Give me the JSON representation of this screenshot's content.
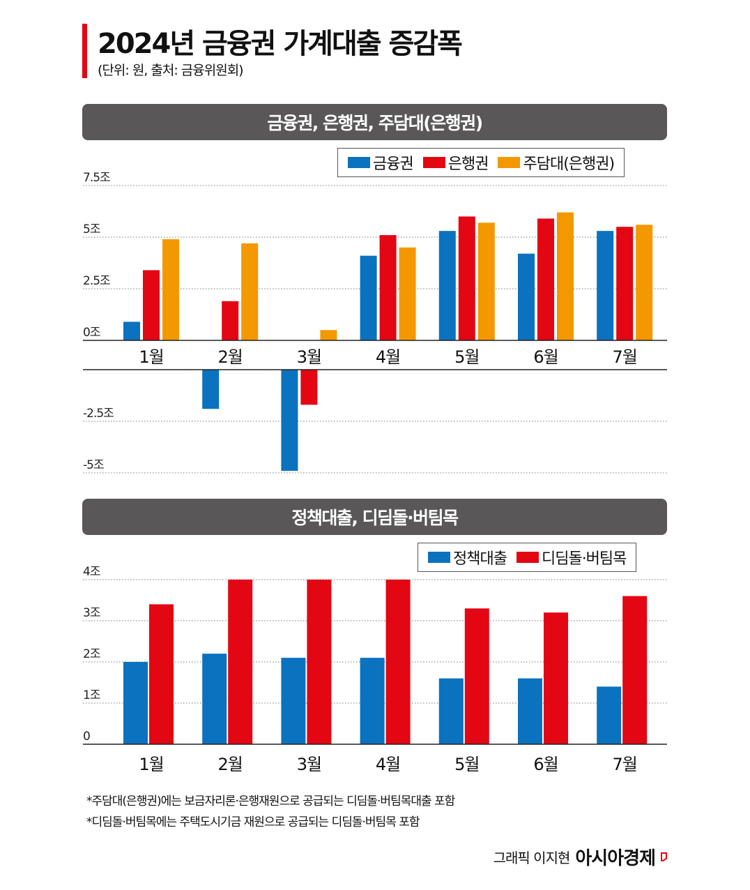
{
  "header": {
    "title": "2024년 금융권 가계대출 증감폭",
    "subtitle": "(단위: 원, 출처: 금융위원회)"
  },
  "colors": {
    "accent": "#e30613",
    "blue": "#0a72bf",
    "red": "#e30613",
    "orange": "#f39800",
    "band": "#595757"
  },
  "chart_data": [
    {
      "type": "bar",
      "title": "금융권, 은행권, 주담대(은행권)",
      "categories": [
        "1월",
        "2월",
        "3월",
        "4월",
        "5월",
        "6월",
        "7월"
      ],
      "series": [
        {
          "name": "금융권",
          "color": "#0a72bf",
          "values": [
            0.9,
            -1.9,
            -4.9,
            4.1,
            5.3,
            4.2,
            5.3
          ]
        },
        {
          "name": "은행권",
          "color": "#e30613",
          "values": [
            3.4,
            1.9,
            -1.7,
            5.1,
            6.0,
            5.9,
            5.5
          ]
        },
        {
          "name": "주담대(은행권)",
          "color": "#f39800",
          "values": [
            4.9,
            4.7,
            0.5,
            4.5,
            5.7,
            6.2,
            5.6
          ]
        }
      ],
      "yticks": [
        "7.5조",
        "5조",
        "2.5조",
        "0조",
        "-2.5조",
        "-5조"
      ],
      "ylim": [
        -5,
        7.5
      ],
      "unit": "조",
      "grid": true,
      "legend": "top-right",
      "axis_break": true
    },
    {
      "type": "bar",
      "title": "정책대출, 디딤돌·버팀목",
      "categories": [
        "1월",
        "2월",
        "3월",
        "4월",
        "5월",
        "6월",
        "7월"
      ],
      "series": [
        {
          "name": "정책대출",
          "color": "#0a72bf",
          "values": [
            2.0,
            2.2,
            2.1,
            2.1,
            1.6,
            1.6,
            1.4
          ]
        },
        {
          "name": "디딤돌·버팀목",
          "color": "#e30613",
          "values": [
            3.4,
            4.0,
            4.0,
            4.0,
            3.3,
            3.2,
            3.6
          ]
        }
      ],
      "yticks": [
        "4조",
        "3조",
        "2조",
        "1조",
        "0"
      ],
      "ylim": [
        0,
        4
      ],
      "unit": "조",
      "grid": true,
      "legend": "top-right"
    }
  ],
  "notes": [
    "*주담대(은행권)에는 보금자리론·은행재원으로 공급되는 디딤돌·버팀목대출 포함",
    "*디딤돌·버팀목에는 주택도시기금 재원으로 공급되는 디딤돌·버팀목 포함"
  ],
  "credit": {
    "text": "그래픽 이지현",
    "brand": "아시아경제"
  }
}
